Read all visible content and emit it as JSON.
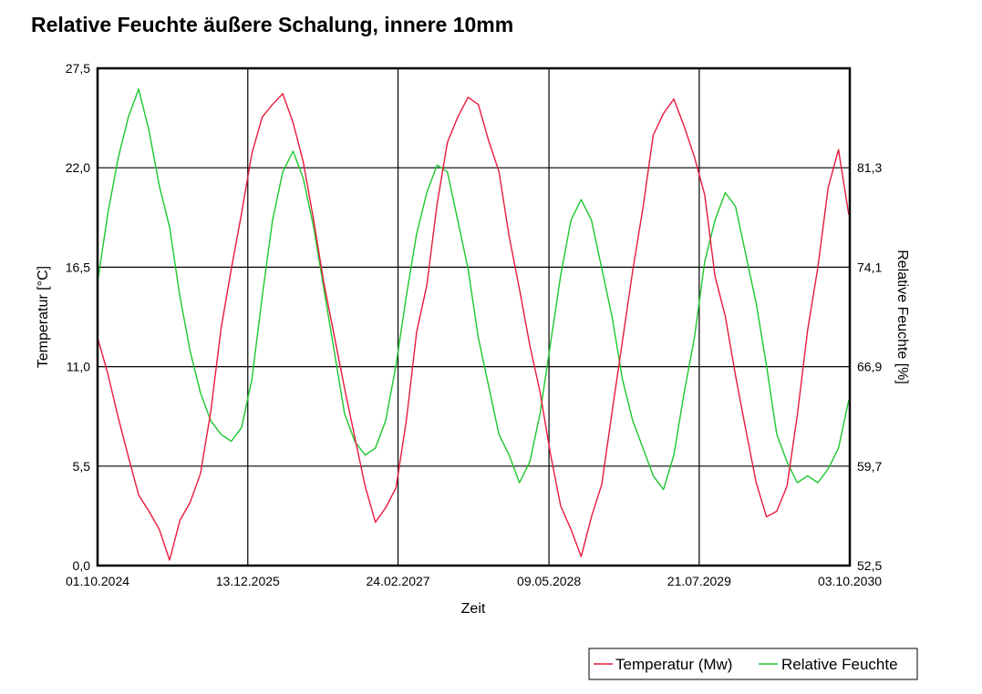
{
  "chart_data": {
    "type": "line",
    "title": "Relative Feuchte äußere Schalung, innere 10mm",
    "xlabel": "Zeit",
    "ylabel": "Temperatur [°C]",
    "y2label": "Relative Feuchte [%]",
    "xlim": [
      "2024-10-01",
      "2030-10-03"
    ],
    "ylim": [
      0.0,
      27.5
    ],
    "y2lim": [
      52.5,
      88.5
    ],
    "x_ticks": [
      "01.10.2024",
      "13.12.2025",
      "24.02.2027",
      "09.05.2028",
      "21.07.2029",
      "03.10.2030"
    ],
    "y_ticks": [
      "0,0",
      "5,5",
      "11,0",
      "16,5",
      "22,0",
      "27,5"
    ],
    "y2_ticks": [
      "52,5",
      "59,7",
      "66,9",
      "74,1",
      "81,3"
    ],
    "grid": true,
    "legend_position": "bottom-right",
    "series": [
      {
        "name": "Temperatur (Mw)",
        "color": "#e8193c",
        "axis": "left",
        "x": [
          "2024-10-01",
          "2024-10-31",
          "2024-11-30",
          "2024-12-30",
          "2025-01-29",
          "2025-02-28",
          "2025-03-30",
          "2025-04-29",
          "2025-05-29",
          "2025-06-28",
          "2025-07-28",
          "2025-08-27",
          "2025-09-26",
          "2025-10-26",
          "2025-11-25",
          "2025-12-25",
          "2026-01-24",
          "2026-02-23",
          "2026-03-25",
          "2026-04-24",
          "2026-05-24",
          "2026-06-23",
          "2026-07-23",
          "2026-08-22",
          "2026-09-21",
          "2026-10-21",
          "2026-11-20",
          "2026-12-20",
          "2027-01-19",
          "2027-02-18",
          "2027-03-20",
          "2027-04-19",
          "2027-05-19",
          "2027-06-18",
          "2027-07-18",
          "2027-08-17",
          "2027-09-16",
          "2027-10-16",
          "2027-11-15",
          "2027-12-15",
          "2028-01-14",
          "2028-02-13",
          "2028-03-14",
          "2028-04-13",
          "2028-05-13",
          "2028-06-12",
          "2028-07-12",
          "2028-08-11",
          "2028-09-10",
          "2028-10-10",
          "2028-11-09",
          "2028-12-09",
          "2029-01-08",
          "2029-02-07",
          "2029-03-09",
          "2029-04-08",
          "2029-05-08",
          "2029-06-07",
          "2029-07-07",
          "2029-08-06",
          "2029-09-05",
          "2029-10-05",
          "2029-11-04",
          "2029-12-04",
          "2030-01-03",
          "2030-02-02",
          "2030-03-04",
          "2030-04-03",
          "2030-05-03",
          "2030-06-02",
          "2030-07-02",
          "2030-08-01",
          "2030-08-31",
          "2030-09-30"
        ],
        "values": [
          12.6,
          10.6,
          8.2,
          6.0,
          3.9,
          3.0,
          2.0,
          0.3,
          2.5,
          3.5,
          5.1,
          8.5,
          13.1,
          16.4,
          19.5,
          22.8,
          24.8,
          25.5,
          26.1,
          24.5,
          22.3,
          19.1,
          15.6,
          12.7,
          9.8,
          7.1,
          4.4,
          2.4,
          3.2,
          4.3,
          8.0,
          12.9,
          15.5,
          20.0,
          23.4,
          24.8,
          25.9,
          25.5,
          23.5,
          21.8,
          18.2,
          15.3,
          12.2,
          9.6,
          6.2,
          3.3,
          2.0,
          0.5,
          2.7,
          4.5,
          8.5,
          12.4,
          16.3,
          19.8,
          23.8,
          25.0,
          25.8,
          24.3,
          22.6,
          20.5,
          16.0,
          13.8,
          10.5,
          7.5,
          4.6,
          2.7,
          3.0,
          4.4,
          8.3,
          13.0,
          16.5,
          20.9,
          23.0,
          19.4
        ]
      },
      {
        "name": "Relative Feuchte",
        "color": "#1dc72d",
        "axis": "right",
        "x": [
          "2024-10-01",
          "2024-10-31",
          "2024-11-30",
          "2024-12-30",
          "2025-01-29",
          "2025-02-28",
          "2025-03-30",
          "2025-04-29",
          "2025-05-29",
          "2025-06-28",
          "2025-07-28",
          "2025-08-27",
          "2025-09-26",
          "2025-10-26",
          "2025-11-25",
          "2025-12-25",
          "2026-01-24",
          "2026-02-23",
          "2026-03-25",
          "2026-04-24",
          "2026-05-24",
          "2026-06-23",
          "2026-07-23",
          "2026-08-22",
          "2026-09-21",
          "2026-10-21",
          "2026-11-20",
          "2026-12-20",
          "2027-01-19",
          "2027-02-18",
          "2027-03-20",
          "2027-04-19",
          "2027-05-19",
          "2027-06-18",
          "2027-07-18",
          "2027-08-17",
          "2027-09-16",
          "2027-10-16",
          "2027-11-15",
          "2027-12-15",
          "2028-01-14",
          "2028-02-13",
          "2028-03-14",
          "2028-04-13",
          "2028-05-13",
          "2028-06-12",
          "2028-07-12",
          "2028-08-11",
          "2028-09-10",
          "2028-10-10",
          "2028-11-09",
          "2028-12-09",
          "2029-01-08",
          "2029-02-07",
          "2029-03-09",
          "2029-04-08",
          "2029-05-08",
          "2029-06-07",
          "2029-07-07",
          "2029-08-06",
          "2029-09-05",
          "2029-10-05",
          "2029-11-04",
          "2029-12-04",
          "2030-01-03",
          "2030-02-02",
          "2030-03-04",
          "2030-04-03",
          "2030-05-03",
          "2030-06-02",
          "2030-07-02",
          "2030-08-01",
          "2030-08-31",
          "2030-09-30"
        ],
        "values": [
          73.0,
          78.0,
          82.0,
          85.0,
          87.0,
          84.0,
          80.0,
          77.0,
          72.0,
          68.0,
          65.0,
          63.0,
          62.0,
          61.5,
          62.5,
          66.0,
          72.0,
          77.5,
          81.0,
          82.5,
          80.5,
          77.0,
          72.5,
          68.0,
          63.5,
          61.5,
          60.5,
          61.0,
          63.0,
          67.0,
          72.0,
          76.5,
          79.5,
          81.5,
          81.0,
          77.5,
          74.0,
          69.0,
          65.5,
          62.0,
          60.5,
          58.5,
          60.0,
          63.5,
          68.5,
          73.5,
          77.5,
          79.0,
          77.5,
          74.0,
          70.5,
          66.0,
          63.0,
          61.0,
          59.0,
          58.0,
          60.5,
          65.0,
          69.0,
          74.5,
          77.5,
          79.5,
          78.5,
          75.0,
          71.5,
          67.0,
          62.0,
          60.0,
          58.5,
          59.0,
          58.5,
          59.5,
          61.0,
          64.5
        ]
      }
    ]
  }
}
